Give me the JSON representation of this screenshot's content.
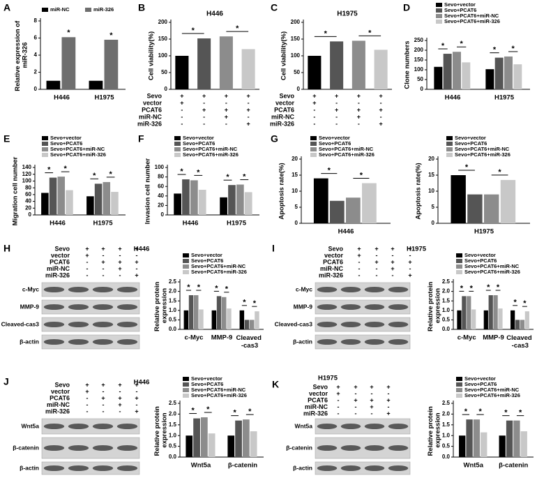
{
  "chart_data": [
    {
      "type": "bar",
      "panel": "A",
      "ylabel": "Relative expression of miR-326",
      "categories": [
        "H446",
        "H1975"
      ],
      "series": [
        {
          "name": "miR-NC",
          "color": "#000000",
          "values": [
            1,
            1
          ]
        },
        {
          "name": "miR-326",
          "color": "#6e6e6e",
          "values": [
            6.1,
            5.8
          ]
        }
      ],
      "ylim": [
        0,
        8
      ],
      "yticks": [
        0,
        2,
        4,
        6,
        8
      ],
      "annotations": [
        "*",
        "*"
      ]
    },
    {
      "type": "bar",
      "panel": "B",
      "title": "H446",
      "ylabel": "Cell viability(%)",
      "values": [
        100,
        152,
        158,
        120
      ],
      "colors": [
        "#000000",
        "#555555",
        "#8c8c8c",
        "#c8c8c8"
      ],
      "ylim": [
        0,
        200
      ],
      "yticks": [
        0,
        50,
        100,
        150,
        200
      ],
      "annotations": [
        "*",
        "*"
      ],
      "conditions": [
        {
          "label": "Sevo",
          "marks": [
            "+",
            "+",
            "+",
            "+"
          ]
        },
        {
          "label": "vector",
          "marks": [
            "+",
            "-",
            "-",
            "-"
          ]
        },
        {
          "label": "PCAT6",
          "marks": [
            "-",
            "+",
            "+",
            "+"
          ]
        },
        {
          "label": "miR-NC",
          "marks": [
            "-",
            "-",
            "+",
            "-"
          ]
        },
        {
          "label": "miR-326",
          "marks": [
            "-",
            "-",
            "-",
            "+"
          ]
        }
      ]
    },
    {
      "type": "bar",
      "panel": "C",
      "title": "H1975",
      "ylabel": "Cell viability(%)",
      "values": [
        100,
        143,
        145,
        118
      ],
      "colors": [
        "#000000",
        "#555555",
        "#8c8c8c",
        "#c8c8c8"
      ],
      "ylim": [
        0,
        200
      ],
      "yticks": [
        0,
        50,
        100,
        150,
        200
      ],
      "annotations": [
        "*",
        "*"
      ],
      "conditions": [
        {
          "label": "Sevo",
          "marks": [
            "+",
            "+",
            "+",
            "+"
          ]
        },
        {
          "label": "vector",
          "marks": [
            "+",
            "-",
            "-",
            "-"
          ]
        },
        {
          "label": "PCAT6",
          "marks": [
            "-",
            "+",
            "+",
            "+"
          ]
        },
        {
          "label": "miR-NC",
          "marks": [
            "-",
            "-",
            "+",
            "-"
          ]
        },
        {
          "label": "miR-326",
          "marks": [
            "-",
            "-",
            "-",
            "+"
          ]
        }
      ]
    },
    {
      "type": "bar",
      "panel": "D",
      "ylabel": "Clone numbers",
      "categories": [
        "H446",
        "H1975"
      ],
      "series": [
        {
          "name": "Sevo+vector",
          "color": "#000000",
          "values": [
            115,
            103
          ]
        },
        {
          "name": "Sevo+PCAT6",
          "color": "#555555",
          "values": [
            182,
            162
          ]
        },
        {
          "name": "Sevo+PCAT6+miR-NC",
          "color": "#8c8c8c",
          "values": [
            192,
            168
          ]
        },
        {
          "name": "Sevo+PCAT6+miR-326",
          "color": "#c8c8c8",
          "values": [
            138,
            128
          ]
        }
      ],
      "ylim": [
        0,
        250
      ],
      "yticks": [
        0,
        50,
        100,
        150,
        200,
        250
      ],
      "annotations": [
        "*",
        "*",
        "*",
        "*"
      ]
    },
    {
      "type": "bar",
      "panel": "E",
      "ylabel": "Migration cell number",
      "categories": [
        "H446",
        "H1975"
      ],
      "series": [
        {
          "name": "Sevo+vector",
          "color": "#000000",
          "values": [
            65,
            55
          ]
        },
        {
          "name": "Sevo+PCAT6",
          "color": "#555555",
          "values": [
            110,
            92
          ]
        },
        {
          "name": "Sevo+PCAT6+miR-NC",
          "color": "#8c8c8c",
          "values": [
            113,
            97
          ]
        },
        {
          "name": "Sevo+PCAT6+miR-326",
          "color": "#c8c8c8",
          "values": [
            73,
            68
          ]
        }
      ],
      "ylim": [
        0,
        140
      ],
      "yticks": [
        0,
        20,
        40,
        60,
        80,
        100,
        120,
        140
      ],
      "annotations": [
        "*",
        "*",
        "*",
        "*"
      ]
    },
    {
      "type": "bar",
      "panel": "F",
      "ylabel": "Invasion cell number",
      "categories": [
        "H446",
        "H1975"
      ],
      "series": [
        {
          "name": "Sevo+vector",
          "color": "#000000",
          "values": [
            45,
            37
          ]
        },
        {
          "name": "Sevo+PCAT6",
          "color": "#555555",
          "values": [
            75,
            63
          ]
        },
        {
          "name": "Sevo+PCAT6+miR-NC",
          "color": "#8c8c8c",
          "values": [
            73,
            64
          ]
        },
        {
          "name": "Sevo+PCAT6+miR-326",
          "color": "#c8c8c8",
          "values": [
            53,
            48
          ]
        }
      ],
      "ylim": [
        0,
        100
      ],
      "yticks": [
        0,
        20,
        40,
        60,
        80,
        100
      ],
      "annotations": [
        "*",
        "*",
        "*",
        "*"
      ]
    },
    {
      "type": "bar",
      "panel": "G",
      "ylabel": "Apoptosis rate(%)",
      "categories": [
        "H446"
      ],
      "series": [
        {
          "name": "Sevo+vector",
          "color": "#000000",
          "values": [
            14
          ]
        },
        {
          "name": "Sevo+PCAT6",
          "color": "#555555",
          "values": [
            7
          ]
        },
        {
          "name": "Sevo+PCAT6+miR-NC",
          "color": "#8c8c8c",
          "values": [
            8
          ]
        },
        {
          "name": "Sevo+PCAT6+miR-326",
          "color": "#c8c8c8",
          "values": [
            12.5
          ]
        }
      ],
      "ylim": [
        0,
        20
      ],
      "yticks": [
        0,
        5,
        10,
        15,
        20
      ],
      "annotations": [
        "*",
        "*"
      ]
    },
    {
      "type": "bar",
      "ylabel": "Apoptosis rate(%)",
      "categories": [
        "H1975"
      ],
      "series": [
        {
          "name": "Sevo+vector",
          "color": "#000000",
          "values": [
            15
          ]
        },
        {
          "name": "Sevo+PCAT6",
          "color": "#555555",
          "values": [
            9
          ]
        },
        {
          "name": "Sevo+PCAT6+miR-NC",
          "color": "#8c8c8c",
          "values": [
            9
          ]
        },
        {
          "name": "Sevo+PCAT6+miR-326",
          "color": "#c8c8c8",
          "values": [
            13.5
          ]
        }
      ],
      "ylim": [
        0,
        20
      ],
      "yticks": [
        0,
        5,
        10,
        15,
        20
      ],
      "annotations": [
        "*",
        "*"
      ]
    },
    {
      "type": "bar",
      "ylabel": "Relative protein expression",
      "categories": [
        "c-Myc",
        "MMP-9",
        "Cleaved -cas3"
      ],
      "series": [
        {
          "name": "Sevo+vector",
          "color": "#000000",
          "values": [
            1,
            1,
            1
          ]
        },
        {
          "name": "Sevo+PCAT6",
          "color": "#555555",
          "values": [
            1.8,
            1.75,
            0.5
          ]
        },
        {
          "name": "Sevo+PCAT6+miR-NC",
          "color": "#8c8c8c",
          "values": [
            1.8,
            1.7,
            0.5
          ]
        },
        {
          "name": "Sevo+PCAT6+miR-326",
          "color": "#c8c8c8",
          "values": [
            1.05,
            1.1,
            0.95
          ]
        }
      ],
      "ylim": [
        0,
        2.5
      ],
      "yticks": [
        {
          "value": 0,
          "label": "0.0"
        },
        0.5,
        {
          "value": 1,
          "label": "1.0"
        },
        1.5,
        {
          "value": 2,
          "label": "2.0"
        },
        2.5
      ],
      "annotations": [
        "*",
        "*",
        "*",
        "*",
        "*",
        "*"
      ]
    },
    {
      "type": "bar",
      "ylabel": "Relative protein expression",
      "categories": [
        "c-Myc",
        "MMP-9",
        "Cleaved -cas3"
      ],
      "series": [
        {
          "name": "Sevo+vector",
          "color": "#000000",
          "values": [
            1,
            1,
            1
          ]
        },
        {
          "name": "Sevo+PCAT6",
          "color": "#555555",
          "values": [
            1.75,
            1.8,
            0.5
          ]
        },
        {
          "name": "Sevo+PCAT6+miR-NC",
          "color": "#8c8c8c",
          "values": [
            1.75,
            1.8,
            0.5
          ]
        },
        {
          "name": "Sevo+PCAT6+miR-326",
          "color": "#c8c8c8",
          "values": [
            1.05,
            1.1,
            0.95
          ]
        }
      ],
      "ylim": [
        0,
        2.5
      ],
      "yticks": [
        {
          "value": 0,
          "label": "0.0"
        },
        0.5,
        {
          "value": 1,
          "label": "1.0"
        },
        1.5,
        {
          "value": 2,
          "label": "2.0"
        },
        2.5
      ],
      "annotations": [
        "*",
        "*",
        "*",
        "*",
        "*",
        "*"
      ]
    },
    {
      "type": "bar",
      "ylabel": "Relative protein expression",
      "categories": [
        "Wnt5a",
        "β-catenin"
      ],
      "series": [
        {
          "name": "Sevo+vector",
          "color": "#000000",
          "values": [
            1,
            1
          ]
        },
        {
          "name": "Sevo+PCAT6",
          "color": "#555555",
          "values": [
            1.8,
            1.7
          ]
        },
        {
          "name": "Sevo+PCAT6+miR-NC",
          "color": "#8c8c8c",
          "values": [
            1.85,
            1.75
          ]
        },
        {
          "name": "Sevo+PCAT6+miR-326",
          "color": "#c8c8c8",
          "values": [
            1.1,
            1.2
          ]
        }
      ],
      "ylim": [
        0,
        2.5
      ],
      "yticks": [
        {
          "value": 0,
          "label": "0.0"
        },
        0.5,
        {
          "value": 1,
          "label": "1.0"
        },
        1.5,
        {
          "value": 2,
          "label": "2.0"
        },
        2.5
      ],
      "annotations": [
        "*",
        "*",
        "*",
        "*"
      ]
    },
    {
      "type": "bar",
      "ylabel": "Relative protein expression",
      "categories": [
        "Wnt5a",
        "β-catenin"
      ],
      "series": [
        {
          "name": "Sevo+vector",
          "color": "#000000",
          "values": [
            1,
            1
          ]
        },
        {
          "name": "Sevo+PCAT6",
          "color": "#555555",
          "values": [
            1.75,
            1.7
          ]
        },
        {
          "name": "Sevo+PCAT6+miR-NC",
          "color": "#8c8c8c",
          "values": [
            1.75,
            1.7
          ]
        },
        {
          "name": "Sevo+PCAT6+miR-326",
          "color": "#c8c8c8",
          "values": [
            1.15,
            1.2
          ]
        }
      ],
      "ylim": [
        0,
        2.5
      ],
      "yticks": [
        {
          "value": 0,
          "label": "0.0"
        },
        0.5,
        {
          "value": 1,
          "label": "1.0"
        },
        1.5,
        {
          "value": 2,
          "label": "2.0"
        },
        2.5
      ],
      "annotations": [
        "*",
        "*",
        "*",
        "*"
      ]
    }
  ],
  "blots": [
    {
      "panel": "H",
      "title": "H446",
      "conditions": [
        {
          "label": "Sevo",
          "marks": [
            "+",
            "+",
            "+",
            "+"
          ]
        },
        {
          "label": "vector",
          "marks": [
            "+",
            "-",
            "-",
            "-"
          ]
        },
        {
          "label": "PCAT6",
          "marks": [
            "-",
            "+",
            "+",
            "+"
          ]
        },
        {
          "label": "miR-NC",
          "marks": [
            "-",
            "-",
            "+",
            "-"
          ]
        },
        {
          "label": "miR-326",
          "marks": [
            "-",
            "-",
            "-",
            "+"
          ]
        }
      ],
      "bands": [
        "c-Myc",
        "MMP-9",
        "Cleaved-cas3",
        "β-actin"
      ]
    },
    {
      "panel": "I",
      "title": "H1975",
      "conditions": [
        {
          "label": "Sevo",
          "marks": [
            "+",
            "+",
            "+",
            "+"
          ]
        },
        {
          "label": "vector",
          "marks": [
            "+",
            "-",
            "-",
            "-"
          ]
        },
        {
          "label": "PCAT6",
          "marks": [
            "-",
            "+",
            "+",
            "+"
          ]
        },
        {
          "label": "miR-NC",
          "marks": [
            "-",
            "-",
            "+",
            "-"
          ]
        },
        {
          "label": "miR-326",
          "marks": [
            "-",
            "-",
            "-",
            "+"
          ]
        }
      ],
      "bands": [
        "c-Myc",
        "MMP-9",
        "Cleaved-cas3",
        "β-actin"
      ]
    },
    {
      "panel": "J",
      "title": "H446",
      "conditions": [
        {
          "label": "Sevo",
          "marks": [
            "+",
            "+",
            "+",
            "+"
          ]
        },
        {
          "label": "vector",
          "marks": [
            "+",
            "-",
            "-",
            "-"
          ]
        },
        {
          "label": "PCAT6",
          "marks": [
            "-",
            "+",
            "+",
            "+"
          ]
        },
        {
          "label": "miR-NC",
          "marks": [
            "-",
            "-",
            "+",
            "-"
          ]
        },
        {
          "label": "miR-326",
          "marks": [
            "-",
            "-",
            "-",
            "+"
          ]
        }
      ],
      "bands": [
        "Wnt5a",
        "β-catenin",
        "β-actin"
      ]
    },
    {
      "panel": "K",
      "title": "H1975",
      "conditions": [
        {
          "label": "Sevo",
          "marks": [
            "+",
            "+",
            "+",
            "+"
          ]
        },
        {
          "label": "vector",
          "marks": [
            "+",
            "-",
            "-",
            "-"
          ]
        },
        {
          "label": "PCAT6",
          "marks": [
            "-",
            "+",
            "+",
            "+"
          ]
        },
        {
          "label": "miR-NC",
          "marks": [
            "-",
            "-",
            "+",
            "-"
          ]
        },
        {
          "label": "miR-326",
          "marks": [
            "-",
            "-",
            "-",
            "+"
          ]
        }
      ],
      "bands": [
        "Wnt5a",
        "β-catenin",
        "β-actin"
      ]
    }
  ]
}
